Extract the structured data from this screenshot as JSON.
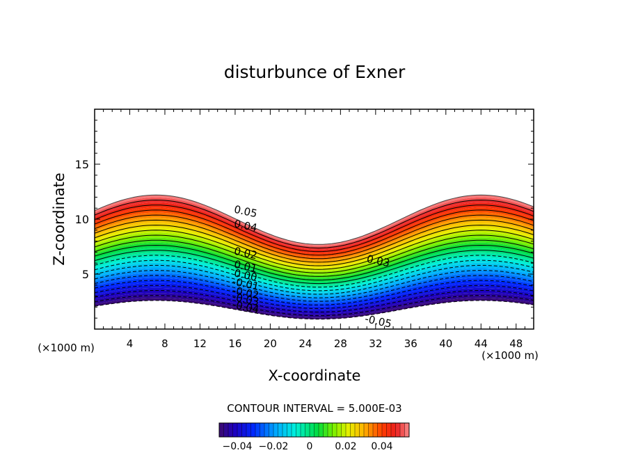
{
  "chart_data": {
    "type": "contour",
    "title": "disturbunce of Exner",
    "xlabel": "X-coordinate",
    "ylabel": "Z-coordinate",
    "x_unit_left": "(×1000 m)",
    "x_unit_right": "(×1000 m)",
    "xlim": [
      0,
      50
    ],
    "ylim": [
      0,
      20
    ],
    "xticks": [
      4,
      8,
      12,
      16,
      20,
      24,
      28,
      32,
      36,
      40,
      44,
      48
    ],
    "yticks": [
      5,
      10,
      15
    ],
    "contour_interval_text": "CONTOUR INTERVAL = 5.000E-03",
    "contour_interval": 0.005,
    "value_range": [
      -0.05,
      0.055
    ],
    "contour_labels": [
      {
        "text": "0.05",
        "x": 17.2,
        "z": 10.7,
        "value": 0.05
      },
      {
        "text": "0.04",
        "x": 17.2,
        "z": 9.4,
        "value": 0.04
      },
      {
        "text": "0.02",
        "x": 17.2,
        "z": 6.9,
        "value": 0.02
      },
      {
        "text": "0.01",
        "x": 17.2,
        "z": 5.7,
        "value": 0.01
      },
      {
        "text": "0.00",
        "x": 17.2,
        "z": 4.9,
        "value": 0.0
      },
      {
        "text": "-0.01",
        "x": 17.2,
        "z": 4.1,
        "value": -0.01
      },
      {
        "text": "-0.02",
        "x": 17.2,
        "z": 3.3,
        "value": -0.02
      },
      {
        "text": "-0.03",
        "x": 17.2,
        "z": 2.7,
        "value": -0.03
      },
      {
        "text": "-0.04",
        "x": 17.2,
        "z": 2.0,
        "value": -0.04
      },
      {
        "text": "0.03",
        "x": 32.3,
        "z": 6.2,
        "value": 0.03
      },
      {
        "text": "-0.05",
        "x": 32.3,
        "z": 0.7,
        "value": -0.05
      }
    ],
    "colorbar": {
      "ticks": [
        {
          "label": "-0.04",
          "value": -0.04
        },
        {
          "label": "-0.02",
          "value": -0.02
        },
        {
          "label": "0",
          "value": 0.0
        },
        {
          "label": "0.02",
          "value": 0.02
        },
        {
          "label": "0.04",
          "value": 0.04
        }
      ],
      "range": [
        -0.05,
        0.055
      ]
    }
  }
}
